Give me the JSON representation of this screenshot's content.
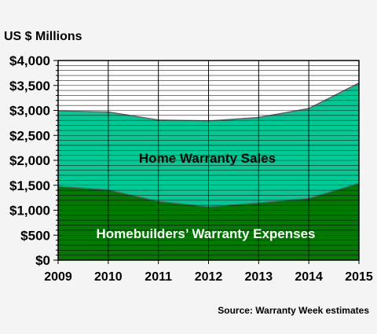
{
  "chart_data": {
    "type": "area",
    "stacked": true,
    "ylabel": "US $ Millions",
    "ylim": [
      0,
      4000
    ],
    "categories": [
      "2009",
      "2010",
      "2011",
      "2012",
      "2013",
      "2014",
      "2015"
    ],
    "y_tick_labels": [
      "$0",
      "$500",
      "$1,000",
      "$1,500",
      "$2,000",
      "$2,500",
      "$3,000",
      "$3,500",
      "$4,000"
    ],
    "y_tick_values": [
      0,
      500,
      1000,
      1500,
      2000,
      2500,
      3000,
      3500,
      4000
    ],
    "grid": true,
    "series": [
      {
        "name": "Homebuilders’ Warranty Expenses",
        "color": "#007a00",
        "values": [
          1480,
          1410,
          1180,
          1070,
          1150,
          1240,
          1540
        ]
      },
      {
        "name": "Home Warranty Sales",
        "color": "#00c995",
        "cumulative_totals": [
          2990,
          2970,
          2810,
          2790,
          2860,
          3040,
          3550
        ]
      }
    ],
    "source_note": "Source: Warranty Week estimates"
  }
}
